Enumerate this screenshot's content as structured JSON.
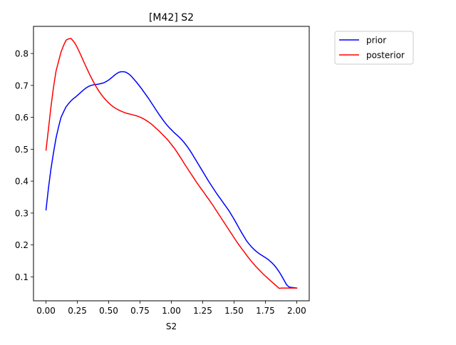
{
  "chart_data": {
    "type": "line",
    "title": "[M42] S2",
    "xlabel": "S2",
    "ylabel": "",
    "xlim": [
      -0.1,
      2.1
    ],
    "ylim": [
      0.025,
      0.885
    ],
    "xticks": [
      0.0,
      0.25,
      0.5,
      0.75,
      1.0,
      1.25,
      1.5,
      1.75,
      2.0
    ],
    "xtick_labels": [
      "0.00",
      "0.25",
      "0.50",
      "0.75",
      "1.00",
      "1.25",
      "1.50",
      "1.75",
      "2.00"
    ],
    "yticks": [
      0.1,
      0.2,
      0.3,
      0.4,
      0.5,
      0.6,
      0.7,
      0.8
    ],
    "ytick_labels": [
      "0.1",
      "0.2",
      "0.3",
      "0.4",
      "0.5",
      "0.6",
      "0.7",
      "0.8"
    ],
    "grid": false,
    "legend_position": "outside-top-right",
    "series": [
      {
        "name": "prior",
        "color": "#0000ff",
        "x": [
          0.0,
          0.02,
          0.04,
          0.06,
          0.08,
          0.1,
          0.12,
          0.14,
          0.16,
          0.18,
          0.2,
          0.22,
          0.24,
          0.26,
          0.28,
          0.3,
          0.32,
          0.34,
          0.36,
          0.38,
          0.4,
          0.42,
          0.44,
          0.46,
          0.48,
          0.5,
          0.52,
          0.54,
          0.56,
          0.58,
          0.6,
          0.62,
          0.64,
          0.66,
          0.68,
          0.7,
          0.72,
          0.74,
          0.76,
          0.78,
          0.8,
          0.82,
          0.84,
          0.86,
          0.88,
          0.9,
          0.92,
          0.94,
          0.96,
          0.98,
          1.0,
          1.02,
          1.04,
          1.06,
          1.08,
          1.1,
          1.12,
          1.14,
          1.16,
          1.18,
          1.2,
          1.22,
          1.24,
          1.26,
          1.28,
          1.3,
          1.32,
          1.34,
          1.36,
          1.38,
          1.4,
          1.42,
          1.44,
          1.46,
          1.48,
          1.5,
          1.52,
          1.54,
          1.56,
          1.58,
          1.6,
          1.62,
          1.64,
          1.66,
          1.68,
          1.7,
          1.72,
          1.74,
          1.76,
          1.78,
          1.8,
          1.82,
          1.84,
          1.86,
          1.88,
          1.9,
          1.92,
          1.94,
          1.96,
          1.98,
          2.0
        ],
        "values": [
          0.31,
          0.38,
          0.44,
          0.49,
          0.535,
          0.57,
          0.6,
          0.617,
          0.633,
          0.643,
          0.652,
          0.659,
          0.665,
          0.672,
          0.679,
          0.686,
          0.692,
          0.697,
          0.7,
          0.702,
          0.703,
          0.704,
          0.706,
          0.708,
          0.712,
          0.717,
          0.723,
          0.73,
          0.736,
          0.741,
          0.743,
          0.743,
          0.741,
          0.736,
          0.729,
          0.72,
          0.711,
          0.701,
          0.691,
          0.68,
          0.669,
          0.658,
          0.646,
          0.634,
          0.622,
          0.61,
          0.599,
          0.588,
          0.578,
          0.569,
          0.561,
          0.553,
          0.546,
          0.539,
          0.531,
          0.522,
          0.512,
          0.501,
          0.489,
          0.476,
          0.463,
          0.45,
          0.437,
          0.424,
          0.411,
          0.398,
          0.386,
          0.374,
          0.362,
          0.351,
          0.34,
          0.329,
          0.318,
          0.307,
          0.294,
          0.281,
          0.267,
          0.253,
          0.239,
          0.226,
          0.213,
          0.203,
          0.194,
          0.186,
          0.179,
          0.173,
          0.168,
          0.163,
          0.158,
          0.152,
          0.145,
          0.137,
          0.127,
          0.116,
          0.103,
          0.089,
          0.075,
          0.068,
          0.067,
          0.066,
          0.065
        ]
      },
      {
        "name": "posterior",
        "color": "#ff0000",
        "x": [
          0.0,
          0.02,
          0.04,
          0.06,
          0.08,
          0.1,
          0.12,
          0.14,
          0.16,
          0.18,
          0.2,
          0.22,
          0.24,
          0.26,
          0.28,
          0.3,
          0.32,
          0.34,
          0.36,
          0.38,
          0.4,
          0.42,
          0.44,
          0.46,
          0.48,
          0.5,
          0.52,
          0.54,
          0.56,
          0.58,
          0.6,
          0.62,
          0.64,
          0.66,
          0.68,
          0.7,
          0.72,
          0.74,
          0.76,
          0.78,
          0.8,
          0.82,
          0.84,
          0.86,
          0.88,
          0.9,
          0.92,
          0.94,
          0.96,
          0.98,
          1.0,
          1.02,
          1.04,
          1.06,
          1.08,
          1.1,
          1.12,
          1.14,
          1.16,
          1.18,
          1.2,
          1.22,
          1.24,
          1.26,
          1.28,
          1.3,
          1.32,
          1.34,
          1.36,
          1.38,
          1.4,
          1.42,
          1.44,
          1.46,
          1.48,
          1.5,
          1.52,
          1.54,
          1.56,
          1.58,
          1.6,
          1.62,
          1.64,
          1.66,
          1.68,
          1.7,
          1.72,
          1.74,
          1.76,
          1.78,
          1.8,
          1.82,
          1.84,
          1.86,
          1.88,
          1.9,
          1.92,
          1.94,
          1.96,
          1.98,
          2.0
        ],
        "values": [
          0.497,
          0.565,
          0.635,
          0.695,
          0.745,
          0.775,
          0.805,
          0.825,
          0.842,
          0.846,
          0.847,
          0.838,
          0.826,
          0.81,
          0.793,
          0.775,
          0.758,
          0.741,
          0.725,
          0.71,
          0.696,
          0.683,
          0.672,
          0.662,
          0.653,
          0.645,
          0.638,
          0.632,
          0.627,
          0.623,
          0.619,
          0.616,
          0.613,
          0.611,
          0.609,
          0.607,
          0.605,
          0.602,
          0.599,
          0.595,
          0.59,
          0.585,
          0.579,
          0.572,
          0.565,
          0.558,
          0.55,
          0.542,
          0.534,
          0.525,
          0.515,
          0.505,
          0.494,
          0.482,
          0.47,
          0.457,
          0.445,
          0.433,
          0.421,
          0.409,
          0.397,
          0.386,
          0.375,
          0.364,
          0.353,
          0.342,
          0.331,
          0.319,
          0.307,
          0.295,
          0.283,
          0.271,
          0.259,
          0.247,
          0.235,
          0.223,
          0.211,
          0.2,
          0.189,
          0.179,
          0.168,
          0.158,
          0.148,
          0.139,
          0.13,
          0.122,
          0.114,
          0.106,
          0.099,
          0.092,
          0.085,
          0.078,
          0.071,
          0.064,
          0.065,
          0.065,
          0.065,
          0.065,
          0.065,
          0.065,
          0.065
        ]
      }
    ]
  }
}
